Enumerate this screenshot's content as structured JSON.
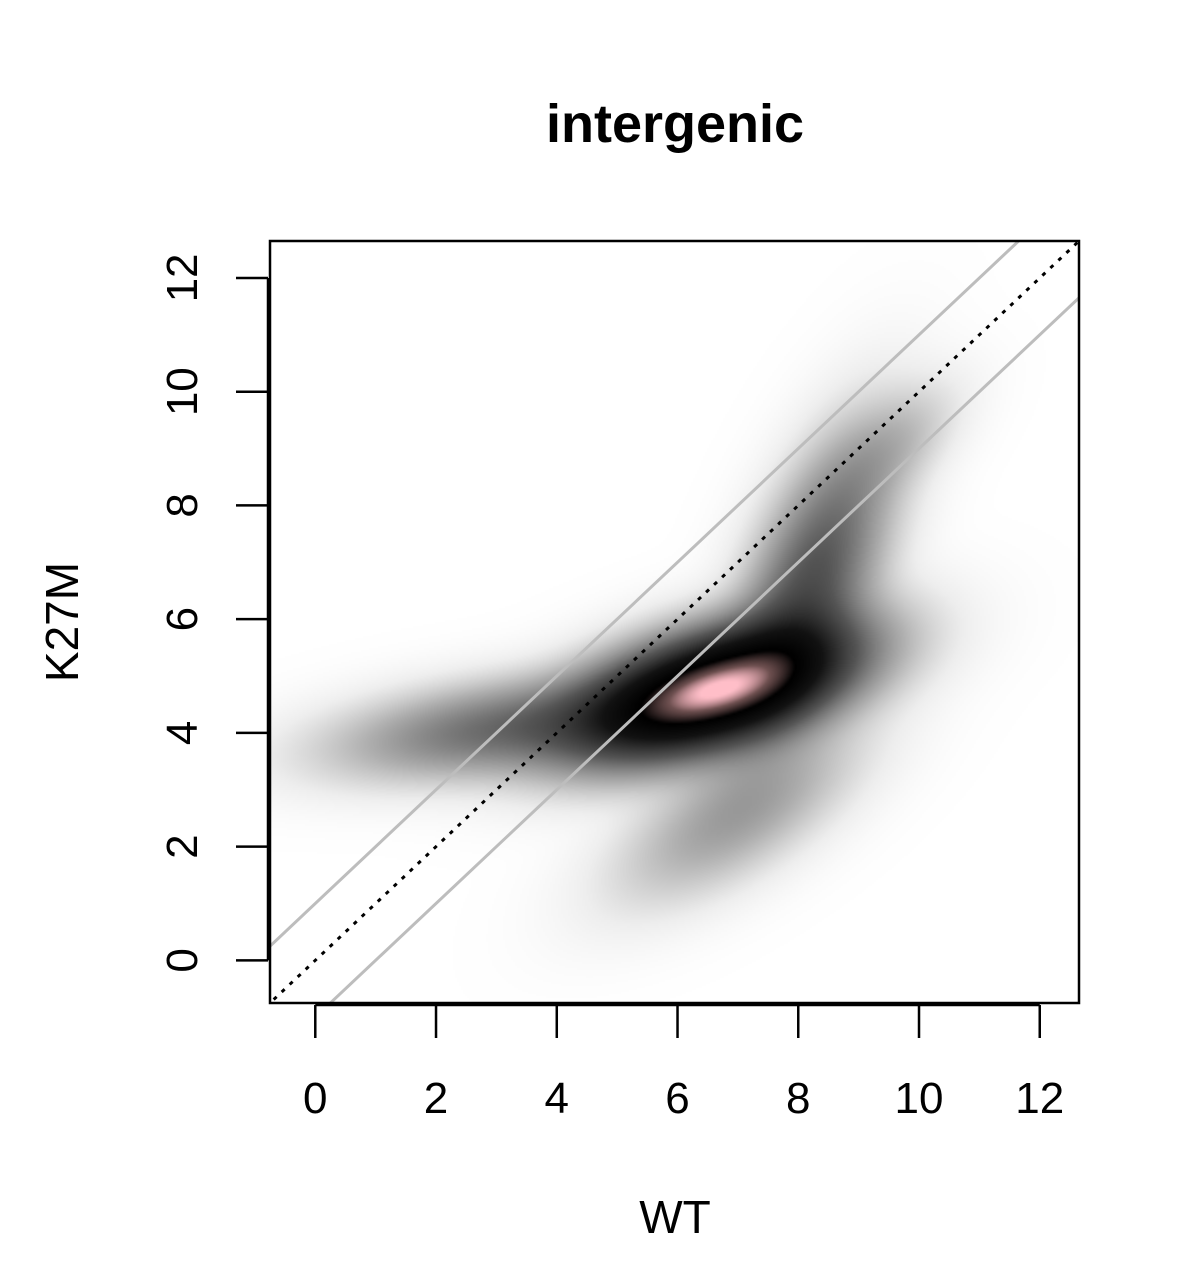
{
  "chart_data": {
    "type": "heatmap",
    "subtype": "smoothed-density-scatter",
    "title": "intergenic",
    "xlabel": "WT",
    "ylabel": "K27M",
    "xlim": [
      -0.75,
      12.65
    ],
    "ylim": [
      -0.75,
      12.65
    ],
    "xticks": [
      0,
      2,
      4,
      6,
      8,
      10,
      12
    ],
    "yticks": [
      0,
      2,
      4,
      6,
      8,
      10,
      12
    ],
    "grid": false,
    "colormap": [
      "#ffffff",
      "#c8c8c8",
      "#7a7a7a",
      "#2a2a2a",
      "#000000",
      "#ffb6c1"
    ],
    "density_components": [
      {
        "center": [
          6.6,
          4.75
        ],
        "sd_major": 1.35,
        "sd_minor": 0.55,
        "angle_deg": 18,
        "weight": 1.0
      },
      {
        "center": [
          3.2,
          4.1
        ],
        "sd_major": 1.6,
        "sd_minor": 0.45,
        "angle_deg": 8,
        "weight": 0.16
      },
      {
        "center": [
          8.2,
          6.6
        ],
        "sd_major": 1.5,
        "sd_minor": 0.55,
        "angle_deg": 70,
        "weight": 0.22
      },
      {
        "center": [
          7.0,
          2.6
        ],
        "sd_major": 1.3,
        "sd_minor": 0.55,
        "angle_deg": 35,
        "weight": 0.08
      },
      {
        "center": [
          9.5,
          9.0
        ],
        "sd_major": 0.8,
        "sd_minor": 0.4,
        "angle_deg": 45,
        "weight": 0.04
      }
    ],
    "peak": [
      6.4,
      4.65
    ],
    "reference_lines": [
      {
        "name": "identity",
        "intercept": 0,
        "slope": 1,
        "style": "dotted",
        "color": "#000000"
      },
      {
        "name": "upper",
        "intercept": 1,
        "slope": 1,
        "style": "solid",
        "color": "#bdbdbd"
      },
      {
        "name": "lower",
        "intercept": -1,
        "slope": 1,
        "style": "solid",
        "color": "#bdbdbd"
      }
    ]
  }
}
